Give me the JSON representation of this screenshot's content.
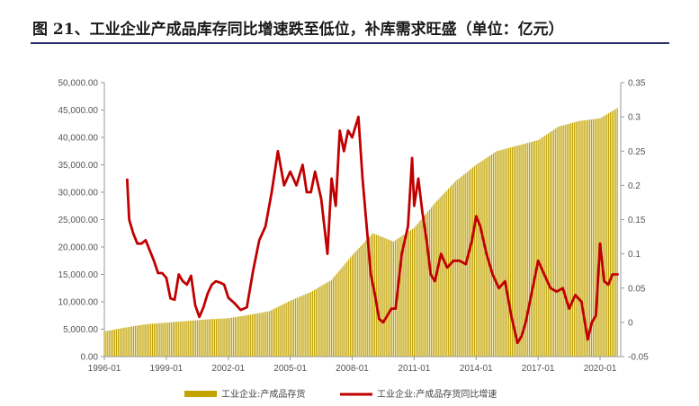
{
  "header": {
    "title": "图 21、工业企业产成品库存同比增速跌至低位，补库需求旺盛（单位：亿元）"
  },
  "chart_data": {
    "type": "bar",
    "title": "图 21、工业企业产成品库存同比增速跌至低位，补库需求旺盛（单位：亿元）",
    "x_tick_labels": [
      "1996-01",
      "1999-01",
      "2002-01",
      "2005-01",
      "2008-01",
      "2011-01",
      "2014-01",
      "2017-01",
      "2020-01"
    ],
    "y_left": {
      "ylim": [
        0,
        50000
      ],
      "tick_labels": [
        "0.00",
        "5,000.00",
        "10,000.00",
        "15,000.00",
        "20,000.00",
        "25,000.00",
        "30,000.00",
        "35,000.00",
        "40,000.00",
        "45,000.00",
        "50,000.00"
      ]
    },
    "y_right": {
      "ylim": [
        -0.05,
        0.35
      ],
      "tick_labels": [
        "-0.05",
        "0",
        "0.05",
        "0.1",
        "0.15",
        "0.2",
        "0.25",
        "0.3",
        "0.35"
      ]
    },
    "legend_position": "bottom",
    "colors": {
      "bar": "#c2a300",
      "line": "#c00000"
    },
    "series": [
      {
        "name": "工业企业:产成品存货",
        "type": "bar",
        "axis": "left",
        "x": [
          1996.0,
          1997.0,
          1998.0,
          1999.0,
          2000.0,
          2001.0,
          2002.0,
          2003.0,
          2004.0,
          2005.0,
          2006.0,
          2007.0,
          2008.0,
          2009.0,
          2010.0,
          2011.0,
          2012.0,
          2013.0,
          2014.0,
          2015.0,
          2016.0,
          2017.0,
          2018.0,
          2019.0,
          2020.0,
          2020.9
        ],
        "values": [
          4600,
          5300,
          5900,
          6200,
          6500,
          6800,
          7000,
          7600,
          8300,
          10200,
          11800,
          14000,
          18500,
          22500,
          21000,
          23500,
          28000,
          32000,
          35000,
          37500,
          38500,
          39500,
          42000,
          43000,
          43500,
          45500
        ]
      },
      {
        "name": "工业企业:产成品存货同比增速",
        "type": "line",
        "axis": "right",
        "x": [
          1997.1,
          1997.2,
          1997.4,
          1997.6,
          1997.8,
          1998.0,
          1998.2,
          1998.4,
          1998.6,
          1998.8,
          1999.0,
          1999.2,
          1999.4,
          1999.6,
          1999.8,
          2000.0,
          2000.2,
          2000.4,
          2000.6,
          2000.8,
          2001.0,
          2001.2,
          2001.4,
          2001.6,
          2001.8,
          2002.0,
          2002.3,
          2002.6,
          2002.9,
          2003.2,
          2003.5,
          2003.8,
          2004.1,
          2004.4,
          2004.7,
          2005.0,
          2005.3,
          2005.6,
          2005.8,
          2006.0,
          2006.2,
          2006.5,
          2006.8,
          2007.0,
          2007.2,
          2007.4,
          2007.6,
          2007.8,
          2008.0,
          2008.3,
          2008.5,
          2008.7,
          2008.9,
          2009.1,
          2009.3,
          2009.5,
          2009.7,
          2009.9,
          2010.1,
          2010.4,
          2010.7,
          2010.9,
          2011.0,
          2011.2,
          2011.4,
          2011.6,
          2011.8,
          2012.0,
          2012.3,
          2012.6,
          2012.9,
          2013.2,
          2013.5,
          2013.8,
          2014.0,
          2014.2,
          2014.5,
          2014.8,
          2015.1,
          2015.4,
          2015.7,
          2016.0,
          2016.2,
          2016.4,
          2016.6,
          2016.8,
          2017.0,
          2017.3,
          2017.6,
          2017.9,
          2018.2,
          2018.5,
          2018.8,
          2019.1,
          2019.4,
          2019.6,
          2019.8,
          2020.0,
          2020.2,
          2020.4,
          2020.6,
          2020.9
        ],
        "values": [
          0.21,
          0.15,
          0.13,
          0.115,
          0.115,
          0.12,
          0.105,
          0.09,
          0.072,
          0.072,
          0.065,
          0.035,
          0.033,
          0.07,
          0.06,
          0.055,
          0.068,
          0.025,
          0.008,
          0.022,
          0.042,
          0.055,
          0.06,
          0.058,
          0.055,
          0.036,
          0.028,
          0.018,
          0.022,
          0.075,
          0.12,
          0.14,
          0.19,
          0.25,
          0.2,
          0.22,
          0.2,
          0.23,
          0.19,
          0.19,
          0.22,
          0.18,
          0.1,
          0.21,
          0.17,
          0.28,
          0.25,
          0.28,
          0.27,
          0.3,
          0.21,
          0.14,
          0.07,
          0.04,
          0.005,
          0.0,
          0.01,
          0.02,
          0.02,
          0.1,
          0.14,
          0.24,
          0.17,
          0.21,
          0.16,
          0.12,
          0.07,
          0.06,
          0.1,
          0.08,
          0.09,
          0.09,
          0.085,
          0.12,
          0.155,
          0.14,
          0.1,
          0.07,
          0.05,
          0.06,
          0.01,
          -0.03,
          -0.02,
          0.0,
          0.03,
          0.06,
          0.09,
          0.07,
          0.05,
          0.045,
          0.05,
          0.02,
          0.04,
          0.03,
          -0.025,
          0.0,
          0.01,
          0.115,
          0.06,
          0.055,
          0.07,
          0.07
        ]
      }
    ]
  }
}
